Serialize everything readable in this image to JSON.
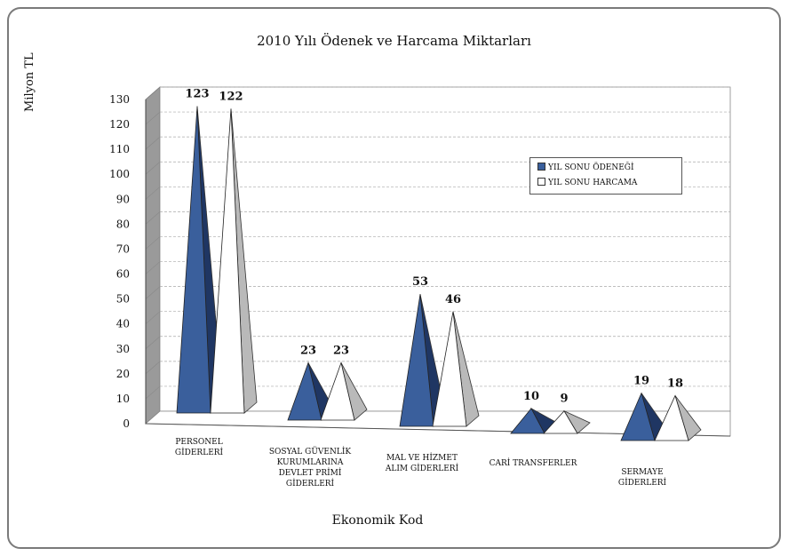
{
  "chart_data": {
    "type": "bar",
    "title": "2010 Yılı Ödenek ve Harcama Miktarları",
    "xlabel": "Ekonomik Kod",
    "ylabel": "Milyon TL",
    "ylim": [
      0,
      130
    ],
    "yticks": [
      "0",
      "10",
      "20",
      "30",
      "40",
      "50",
      "60",
      "70",
      "80",
      "90",
      "100",
      "110",
      "120",
      "130"
    ],
    "categories": [
      "PERSONEL\nGİDERLERİ",
      "SOSYAL GÜVENLİK\nKURUMLARINA\nDEVLET PRİMİ\nGİDERLERİ",
      "MAL VE HİZMET\nALIM GİDERLERİ",
      "CARİ TRANSFERLER",
      "SERMAYE\nGİDERLERİ"
    ],
    "series": [
      {
        "name": "YIL SONU ÖDENEĞİ",
        "values": [
          123,
          23,
          53,
          10,
          19
        ],
        "color": "#3a5f9c",
        "shade": "#1f3663"
      },
      {
        "name": "YIL SONU HARCAMA",
        "values": [
          122,
          23,
          46,
          9,
          18
        ],
        "color": "#ffffff",
        "shade": "#b9b9b9"
      }
    ],
    "data_labels": [
      [
        "123",
        "23",
        "53",
        "10",
        "19"
      ],
      [
        "122",
        "23",
        "46",
        "9",
        "18"
      ]
    ],
    "legend_position": "right",
    "grid": true,
    "shape": "pyramid"
  }
}
